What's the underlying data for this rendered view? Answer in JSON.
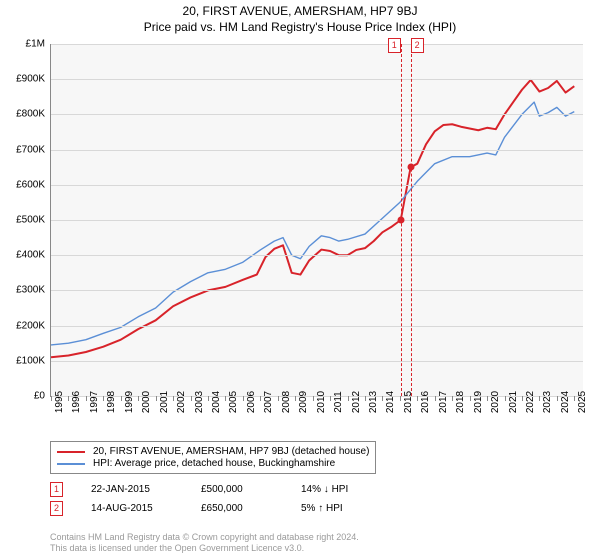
{
  "title": "20, FIRST AVENUE, AMERSHAM, HP7 9BJ",
  "subtitle": "Price paid vs. HM Land Registry's House Price Index (HPI)",
  "chart": {
    "type": "line",
    "background_color": "#f7f7f7",
    "grid_color": "#d8d8d8",
    "axis_color": "#888888",
    "ylim": [
      0,
      1000000
    ],
    "ytick_step": 100000,
    "ylabels": [
      "£0",
      "£100K",
      "£200K",
      "£300K",
      "£400K",
      "£500K",
      "£600K",
      "£700K",
      "£800K",
      "£900K",
      "£1M"
    ],
    "xlim": [
      1995,
      2025.5
    ],
    "xlabels": [
      1995,
      1996,
      1997,
      1998,
      1999,
      2000,
      2001,
      2002,
      2003,
      2004,
      2005,
      2006,
      2007,
      2008,
      2009,
      2010,
      2011,
      2012,
      2013,
      2014,
      2015,
      2016,
      2017,
      2018,
      2019,
      2020,
      2021,
      2022,
      2023,
      2024,
      2025
    ],
    "series": [
      {
        "name": "property",
        "label": "20, FIRST AVENUE, AMERSHAM, HP7 9BJ (detached house)",
        "color": "#d8232a",
        "width": 2,
        "data": [
          [
            1995,
            110000
          ],
          [
            1996,
            115000
          ],
          [
            1997,
            125000
          ],
          [
            1998,
            140000
          ],
          [
            1999,
            160000
          ],
          [
            2000,
            190000
          ],
          [
            2001,
            215000
          ],
          [
            2002,
            255000
          ],
          [
            2003,
            280000
          ],
          [
            2004,
            300000
          ],
          [
            2005,
            310000
          ],
          [
            2006,
            330000
          ],
          [
            2006.8,
            345000
          ],
          [
            2007.3,
            395000
          ],
          [
            2007.8,
            418000
          ],
          [
            2008.3,
            428000
          ],
          [
            2008.8,
            350000
          ],
          [
            2009.3,
            345000
          ],
          [
            2009.8,
            385000
          ],
          [
            2010.5,
            416000
          ],
          [
            2011,
            412000
          ],
          [
            2011.5,
            400000
          ],
          [
            2012,
            400000
          ],
          [
            2012.5,
            415000
          ],
          [
            2013,
            420000
          ],
          [
            2013.5,
            440000
          ],
          [
            2014,
            465000
          ],
          [
            2014.5,
            480000
          ],
          [
            2015.05,
            500000
          ],
          [
            2015.62,
            650000
          ],
          [
            2016,
            660000
          ],
          [
            2016.5,
            715000
          ],
          [
            2017,
            752000
          ],
          [
            2017.5,
            770000
          ],
          [
            2018,
            772000
          ],
          [
            2018.5,
            765000
          ],
          [
            2019,
            760000
          ],
          [
            2019.5,
            755000
          ],
          [
            2020,
            762000
          ],
          [
            2020.5,
            758000
          ],
          [
            2021,
            800000
          ],
          [
            2021.5,
            835000
          ],
          [
            2022,
            870000
          ],
          [
            2022.5,
            898000
          ],
          [
            2023,
            865000
          ],
          [
            2023.5,
            875000
          ],
          [
            2024,
            895000
          ],
          [
            2024.5,
            862000
          ],
          [
            2025,
            880000
          ]
        ]
      },
      {
        "name": "hpi",
        "label": "HPI: Average price, detached house, Buckinghamshire",
        "color": "#5b8fd6",
        "width": 1.4,
        "data": [
          [
            1995,
            145000
          ],
          [
            1996,
            150000
          ],
          [
            1997,
            160000
          ],
          [
            1998,
            178000
          ],
          [
            1999,
            195000
          ],
          [
            2000,
            225000
          ],
          [
            2001,
            250000
          ],
          [
            2002,
            295000
          ],
          [
            2003,
            325000
          ],
          [
            2004,
            350000
          ],
          [
            2005,
            360000
          ],
          [
            2006,
            380000
          ],
          [
            2007,
            415000
          ],
          [
            2007.8,
            440000
          ],
          [
            2008.3,
            450000
          ],
          [
            2008.8,
            400000
          ],
          [
            2009.3,
            390000
          ],
          [
            2009.8,
            425000
          ],
          [
            2010.5,
            455000
          ],
          [
            2011,
            450000
          ],
          [
            2011.5,
            440000
          ],
          [
            2012,
            445000
          ],
          [
            2013,
            460000
          ],
          [
            2014,
            505000
          ],
          [
            2015,
            550000
          ],
          [
            2016,
            610000
          ],
          [
            2017,
            660000
          ],
          [
            2018,
            680000
          ],
          [
            2019,
            680000
          ],
          [
            2020,
            690000
          ],
          [
            2020.5,
            685000
          ],
          [
            2021,
            735000
          ],
          [
            2022,
            800000
          ],
          [
            2022.7,
            835000
          ],
          [
            2023,
            795000
          ],
          [
            2023.5,
            805000
          ],
          [
            2024,
            820000
          ],
          [
            2024.5,
            795000
          ],
          [
            2025,
            808000
          ]
        ]
      }
    ],
    "sales": [
      {
        "n": "1",
        "x": 2015.05,
        "price": 500000,
        "date": "22-JAN-2015",
        "price_text": "£500,000",
        "hpi_text": "14% ↓ HPI",
        "arrow": "↓",
        "color": "#d8232a"
      },
      {
        "n": "2",
        "x": 2015.62,
        "price": 650000,
        "date": "14-AUG-2015",
        "price_text": "£650,000",
        "hpi_text": "5% ↑ HPI",
        "arrow": "↑",
        "color": "#d8232a"
      }
    ]
  },
  "license": {
    "line1": "Contains HM Land Registry data © Crown copyright and database right 2024.",
    "line2": "This data is licensed under the Open Government Licence v3.0."
  }
}
